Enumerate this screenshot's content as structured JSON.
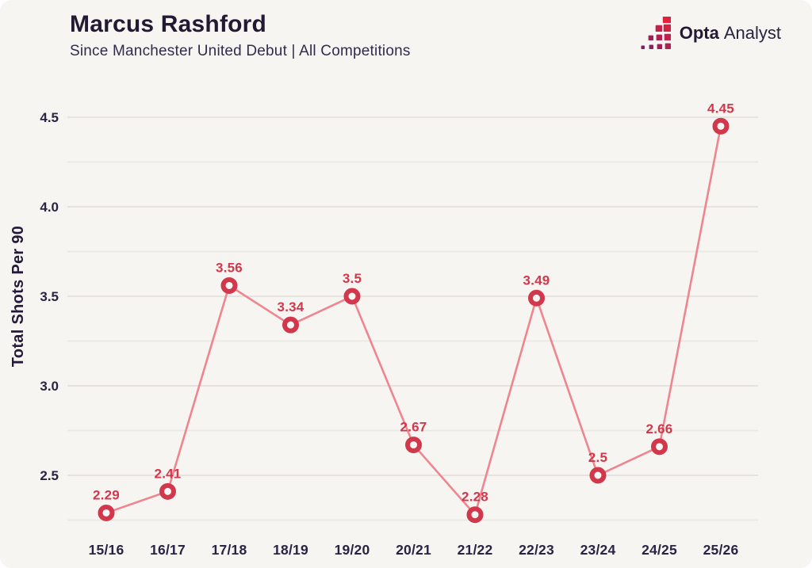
{
  "header": {
    "title": "Marcus Rashford",
    "subtitle": "Since Manchester United Debut | All Competitions"
  },
  "logo": {
    "brand_bold": "Opta",
    "brand_regular": "Analyst",
    "icon": "opta-steps-icon",
    "icon_gradient": {
      "from": "#7c2069",
      "to": "#e4213a"
    }
  },
  "chart_data": {
    "type": "line",
    "title": "Marcus Rashford",
    "subtitle": "Since Manchester United Debut | All Competitions",
    "xlabel": "",
    "ylabel": "Total Shots Per 90",
    "categories": [
      "15/16",
      "16/17",
      "17/18",
      "18/19",
      "19/20",
      "20/21",
      "21/22",
      "22/23",
      "23/24",
      "24/25",
      "25/26"
    ],
    "series": [
      {
        "name": "Total Shots Per 90",
        "values": [
          2.29,
          2.41,
          3.56,
          3.34,
          3.5,
          2.67,
          2.28,
          3.49,
          2.5,
          2.66,
          4.45
        ],
        "labels": [
          "2.29",
          "2.41",
          "3.56",
          "3.34",
          "3.5",
          "2.67",
          "2.28",
          "3.49",
          "2.5",
          "2.66",
          "4.45"
        ]
      }
    ],
    "ylim": [
      2.25,
      4.5
    ],
    "grid": true,
    "grid_interval": 0.25,
    "ytick_values": [
      2.5,
      3.0,
      3.5,
      4.0,
      4.5
    ],
    "ytick_labels": [
      "2.5",
      "3.0",
      "3.5",
      "4.0",
      "4.5"
    ],
    "legend": "none",
    "colors": {
      "background": "#f6f5f2",
      "line": "#ef858f",
      "marker_stroke": "#d2384c",
      "marker_fill": "#f7f6f4",
      "data_label": "#d2384c",
      "grid_major": "#e3e0dc",
      "grid_minor": "#eae8e4",
      "axis_text": "#2a2344",
      "title_text": "#221a33"
    }
  }
}
